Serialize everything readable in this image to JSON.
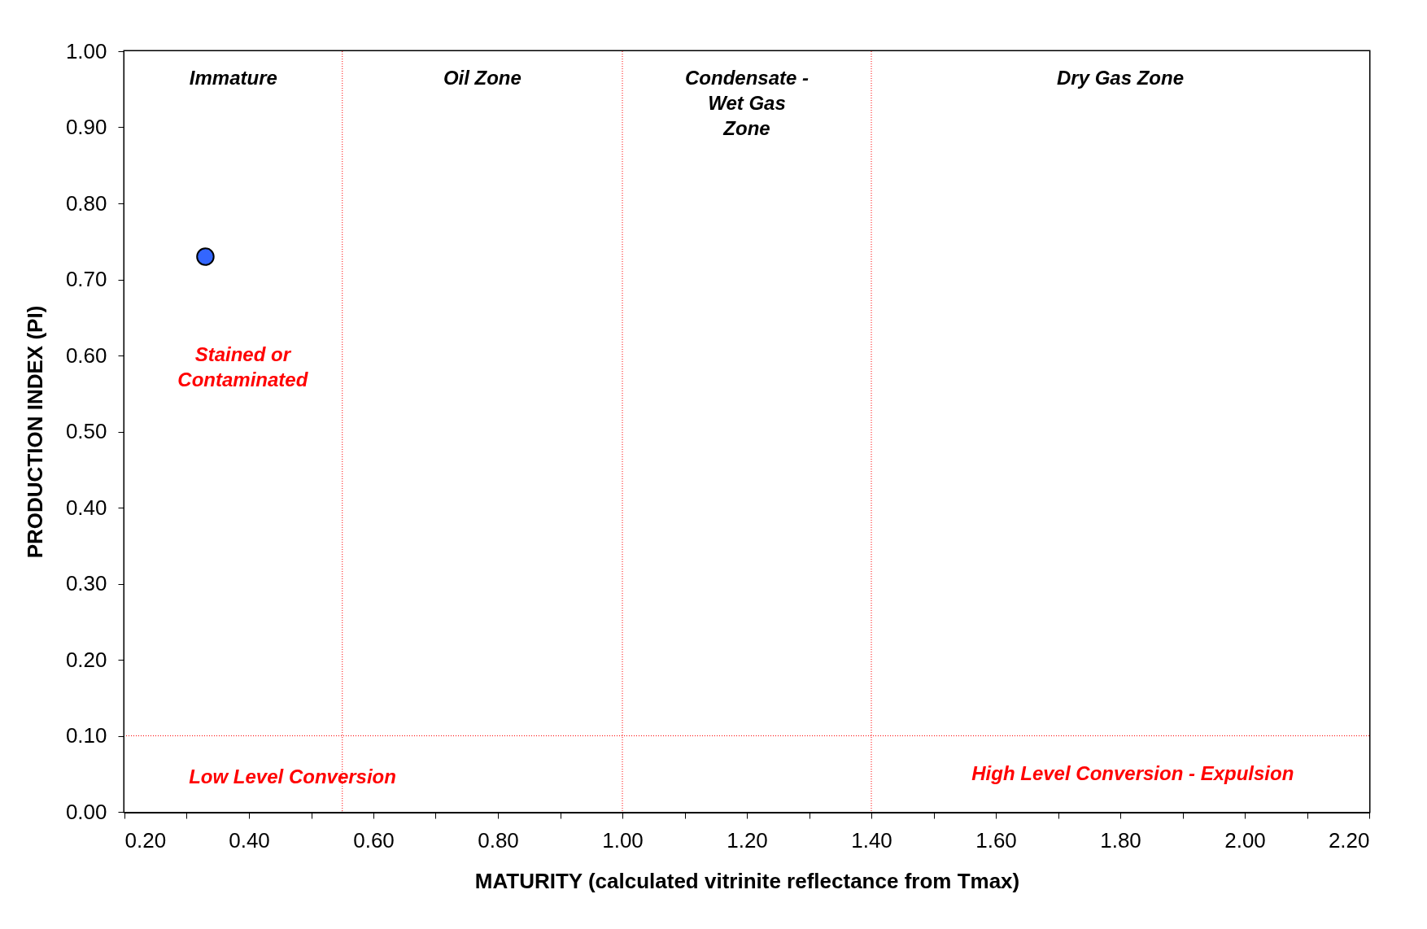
{
  "chart_data": {
    "type": "scatter",
    "xlabel": "MATURITY (calculated vitrinite reflectance from Tmax)",
    "ylabel": "PRODUCTION INDEX (PI)",
    "x": [
      0.33
    ],
    "values": [
      0.73
    ],
    "color": "#3366ff",
    "marker": "circle",
    "grid": false,
    "xlim": [
      0.2,
      2.2
    ],
    "ylim": [
      0,
      1
    ],
    "xticks": [
      {
        "value": 0.2,
        "label": "0.20"
      },
      {
        "value": 0.3,
        "label": null
      },
      {
        "value": 0.4,
        "label": "0.40"
      },
      {
        "value": 0.5,
        "label": null
      },
      {
        "value": 0.6,
        "label": "0.60"
      },
      {
        "value": 0.7,
        "label": null
      },
      {
        "value": 0.8,
        "label": "0.80"
      },
      {
        "value": 0.9,
        "label": null
      },
      {
        "value": 1.0,
        "label": "1.00"
      },
      {
        "value": 1.1,
        "label": null
      },
      {
        "value": 1.2,
        "label": "1.20"
      },
      {
        "value": 1.3,
        "label": null
      },
      {
        "value": 1.4,
        "label": "1.40"
      },
      {
        "value": 1.5,
        "label": null
      },
      {
        "value": 1.6,
        "label": "1.60"
      },
      {
        "value": 1.7,
        "label": null
      },
      {
        "value": 1.8,
        "label": "1.80"
      },
      {
        "value": 1.9,
        "label": null
      },
      {
        "value": 2.0,
        "label": "2.00"
      },
      {
        "value": 2.1,
        "label": null
      },
      {
        "value": 2.2,
        "label": "2.20"
      }
    ],
    "yticks": [
      {
        "value": 0,
        "label": "0.00"
      },
      {
        "value": 0.1,
        "label": "0.10"
      },
      {
        "value": 0.2,
        "label": "0.20"
      },
      {
        "value": 0.3,
        "label": "0.30"
      },
      {
        "value": 0.4,
        "label": "0.40"
      },
      {
        "value": 0.5,
        "label": "0.50"
      },
      {
        "value": 0.6,
        "label": "0.60"
      },
      {
        "value": 0.7,
        "label": "0.70"
      },
      {
        "value": 0.8,
        "label": "0.80"
      },
      {
        "value": 0.9,
        "label": "0.90"
      },
      {
        "value": 1.0,
        "label": "1.00"
      }
    ],
    "ref_lines": [
      {
        "axis": "x",
        "value": 0.55,
        "color": "#ff0000",
        "line_style": "dotted"
      },
      {
        "axis": "x",
        "value": 1.0,
        "color": "#ff0000",
        "line_style": "dotted"
      },
      {
        "axis": "x",
        "value": 1.4,
        "color": "#ff0000",
        "line_style": "dotted"
      },
      {
        "axis": "y",
        "value": 0.1,
        "color": "#ff0000",
        "line_style": "dotted"
      }
    ],
    "bands": [
      {
        "axis": "x",
        "from": 0.2,
        "to": 0.55,
        "label": "Immature",
        "color": "#ffffff"
      },
      {
        "axis": "x",
        "from": 0.55,
        "to": 1.0,
        "label": "Oil Zone",
        "color": "#ffffff"
      },
      {
        "axis": "x",
        "from": 1.0,
        "to": 1.4,
        "label": "Condensate  -\nWet Gas\nZone",
        "color": "#ffffff"
      },
      {
        "axis": "x",
        "from": 1.4,
        "to": 2.2,
        "label": "Dry Gas Zone",
        "color": "#ffffff"
      }
    ],
    "annotations": [
      "Stained or\nContaminated",
      "Low Level Conversion",
      "High Level Conversion  - Expulsion"
    ]
  }
}
